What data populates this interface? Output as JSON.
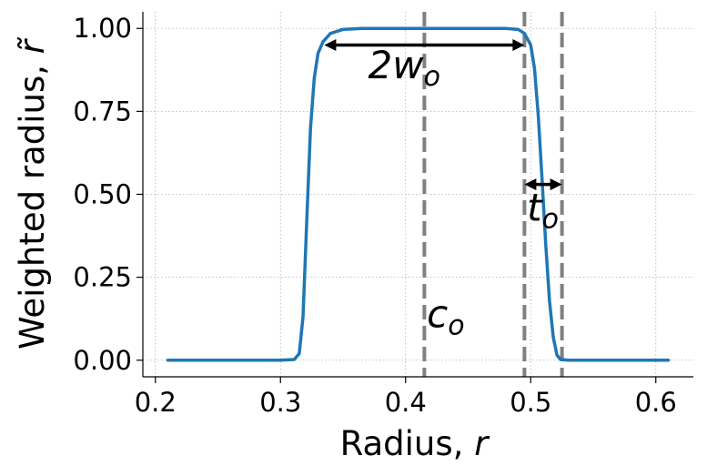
{
  "chart_data": {
    "type": "line",
    "xlabel": "Radius, ",
    "xlabel_var": "r",
    "ylabel": "Weighted radius, ",
    "ylabel_var": "r̃",
    "xlim": [
      0.19,
      0.63
    ],
    "ylim": [
      -0.05,
      1.05
    ],
    "x_ticks": [
      0.2,
      0.3,
      0.4,
      0.5,
      0.6
    ],
    "x_tick_labels": [
      "0.2",
      "0.3",
      "0.4",
      "0.5",
      "0.6"
    ],
    "y_ticks": [
      0.0,
      0.25,
      0.5,
      0.75,
      1.0
    ],
    "y_tick_labels": [
      "0.00",
      "0.25",
      "0.50",
      "0.75",
      "1.00"
    ],
    "grid": true,
    "series": [
      {
        "color": "#1f77b4",
        "x": [
          0.21,
          0.3,
          0.311,
          0.315,
          0.318,
          0.321,
          0.324,
          0.327,
          0.33,
          0.334,
          0.34,
          0.35,
          0.365,
          0.38,
          0.4,
          0.42,
          0.44,
          0.46,
          0.48,
          0.49,
          0.495,
          0.5,
          0.503,
          0.506,
          0.509,
          0.512,
          0.515,
          0.518,
          0.521,
          0.524,
          0.53,
          0.61
        ],
        "y": [
          0.0,
          0.0,
          0.002,
          0.02,
          0.13,
          0.42,
          0.7,
          0.85,
          0.925,
          0.96,
          0.985,
          0.997,
          1.0,
          1.0,
          1.0,
          1.0,
          1.0,
          1.0,
          1.0,
          0.997,
          0.985,
          0.95,
          0.88,
          0.74,
          0.55,
          0.35,
          0.18,
          0.07,
          0.015,
          0.002,
          0.0,
          0.0
        ]
      }
    ],
    "vlines": {
      "x": [
        0.415,
        0.495,
        0.525
      ],
      "color": "#808080"
    },
    "arrows": [
      {
        "x1": 0.335,
        "x2": 0.495,
        "y": 0.95
      },
      {
        "x1": 0.495,
        "x2": 0.525,
        "y": 0.53
      }
    ],
    "annotations": [
      {
        "base": "2w",
        "sub": "o",
        "x": 0.37,
        "y": 0.85
      },
      {
        "base": "t",
        "sub": "o",
        "x": 0.497,
        "y": 0.42
      },
      {
        "base": "c",
        "sub": "o",
        "x": 0.417,
        "y": 0.1
      }
    ]
  }
}
